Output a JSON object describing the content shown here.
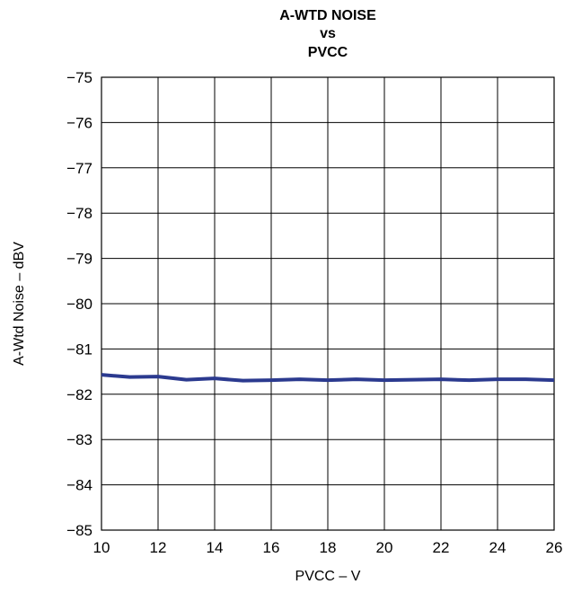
{
  "chart_data": {
    "type": "line",
    "title": [
      "A-WTD NOISE",
      "vs",
      "PVCC"
    ],
    "xlabel": "PVCC – V",
    "ylabel": "A-Wtd Noise – dBV",
    "xlim": [
      10,
      26
    ],
    "ylim": [
      -85,
      -75
    ],
    "x_ticks": [
      10,
      12,
      14,
      16,
      18,
      20,
      22,
      24,
      26
    ],
    "x_tick_labels": [
      "10",
      "12",
      "14",
      "16",
      "18",
      "20",
      "22",
      "24",
      "26"
    ],
    "y_ticks": [
      -75,
      -76,
      -77,
      -78,
      -79,
      -80,
      -81,
      -82,
      -83,
      -84,
      -85
    ],
    "y_tick_labels": [
      "−75",
      "−76",
      "−77",
      "−78",
      "−79",
      "−80",
      "−81",
      "−82",
      "−83",
      "−84",
      "−85"
    ],
    "grid": true,
    "series": [
      {
        "x": [
          10,
          11,
          12,
          13,
          14,
          15,
          16,
          17,
          18,
          19,
          20,
          21,
          22,
          23,
          24,
          25,
          26
        ],
        "y": [
          -81.57,
          -81.62,
          -81.61,
          -81.68,
          -81.65,
          -81.7,
          -81.69,
          -81.67,
          -81.69,
          -81.67,
          -81.69,
          -81.68,
          -81.67,
          -81.69,
          -81.67,
          -81.67,
          -81.69
        ]
      }
    ],
    "line_color": "#2b3a8f",
    "grid_color": "#000000"
  }
}
